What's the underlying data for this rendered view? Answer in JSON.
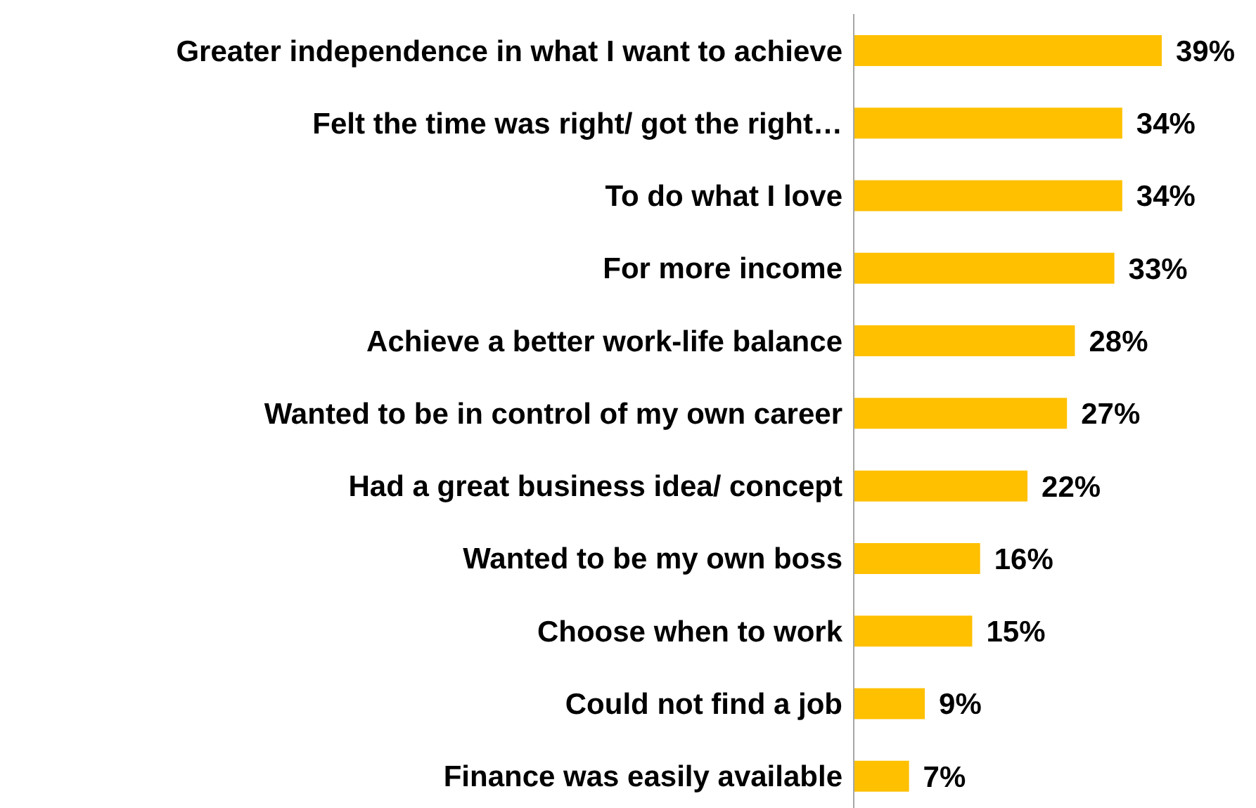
{
  "chart_data": {
    "type": "bar",
    "orientation": "horizontal",
    "categories": [
      "Greater independence in what I want to achieve",
      "Felt the time was right/ got the right…",
      "To do what I love",
      "For more income",
      "Achieve a better work-life balance",
      "Wanted to be in control of my own career",
      "Had a great business idea/ concept",
      "Wanted to be my own boss",
      "Choose when to work",
      "Could not find a job",
      "Finance was easily available"
    ],
    "values": [
      39,
      34,
      34,
      33,
      28,
      27,
      22,
      16,
      15,
      9,
      7
    ],
    "value_labels": [
      "39%",
      "34%",
      "34%",
      "33%",
      "28%",
      "27%",
      "22%",
      "16%",
      "15%",
      "9%",
      "7%"
    ],
    "color": "#ffc000",
    "grid": false,
    "legend": false
  }
}
